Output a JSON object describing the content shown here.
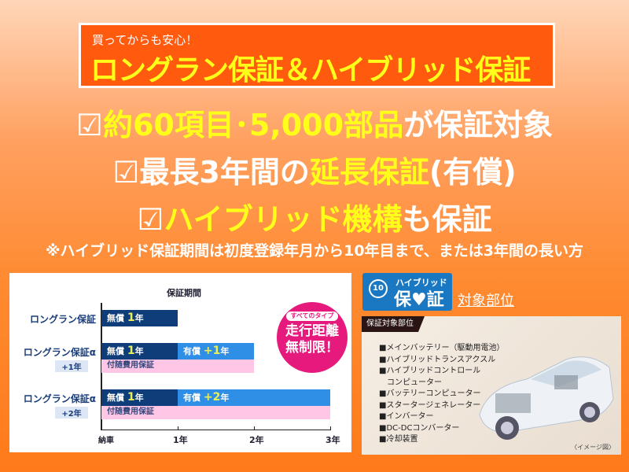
{
  "header": {
    "subtitle": "買ってからも安心！",
    "title": "ロングラン保証＆ハイブリッド保証"
  },
  "features": [
    {
      "check": "☑",
      "parts": [
        {
          "text": "約60項目･5,000部品",
          "highlight": true
        },
        {
          "text": "が保証対象",
          "highlight": false
        }
      ]
    },
    {
      "check": "☑",
      "parts": [
        {
          "text": "最長3年間の",
          "highlight": false
        },
        {
          "text": "延長保証",
          "highlight": true
        },
        {
          "text": "(有償)",
          "highlight": false
        }
      ]
    },
    {
      "check": "☑",
      "parts": [
        {
          "text": "ハイブリッド機構",
          "highlight": true
        },
        {
          "text": "も保証",
          "highlight": false
        }
      ]
    }
  ],
  "note": "※ハイブリッド保証期間は初度登録年月から10年目まで、または3年間の長い方",
  "chart_data": {
    "type": "bar",
    "title": "保証期間",
    "x_ticks": [
      "納車",
      "1年",
      "2年",
      "3年"
    ],
    "xlim": [
      0,
      3
    ],
    "rows": [
      {
        "label": "ロングラン保証",
        "tag": "",
        "segments": [
          {
            "label": "無償",
            "num": "1",
            "unit": "年",
            "from": 0,
            "to": 1,
            "color": "#0f3d7a"
          }
        ],
        "sub": null
      },
      {
        "label": "ロングラン保証α",
        "tag": "+1年",
        "segments": [
          {
            "label": "無償",
            "num": "1",
            "unit": "年",
            "from": 0,
            "to": 1,
            "color": "#0f3d7a"
          },
          {
            "label": "有償",
            "num": "+1",
            "unit": "年",
            "from": 1,
            "to": 2,
            "color": "#2f8fe6"
          }
        ],
        "sub": {
          "label": "付随費用保証",
          "from": 0,
          "to": 2,
          "color": "#ffc6e6"
        }
      },
      {
        "label": "ロングラン保証α",
        "tag": "+2年",
        "segments": [
          {
            "label": "無償",
            "num": "1",
            "unit": "年",
            "from": 0,
            "to": 1,
            "color": "#0f3d7a"
          },
          {
            "label": "有償",
            "num": "+2",
            "unit": "年",
            "from": 1,
            "to": 3,
            "color": "#2f8fe6"
          }
        ],
        "sub": {
          "label": "付随費用保証",
          "from": 0,
          "to": 3,
          "color": "#ffc6e6"
        }
      }
    ],
    "callout": {
      "pill": "すべてのタイプ",
      "line1": "走行距離",
      "line2": "無制限！"
    }
  },
  "badge": {
    "years": "10",
    "top": "ハイブリッド",
    "bottom": "保♥証"
  },
  "target_link": "対象部位",
  "parts": {
    "tag": "保証対象部位",
    "items": [
      "■メインバッテリー（駆動用電池）",
      "■ハイブリッドトランスアクスル",
      "■ハイブリッドコントロール",
      "　コンピューター",
      "■バッテリーコンピューター",
      "■スタータージェネレーター",
      "■インバーター",
      "■DC-DCコンバーター",
      "■冷却装置"
    ],
    "caption": "〈イメージ図〉"
  },
  "colors": {
    "accent": "#ff5a0e",
    "highlight": "#ffff1a",
    "badge": "#1a78c2",
    "callout": "#e6197c"
  }
}
